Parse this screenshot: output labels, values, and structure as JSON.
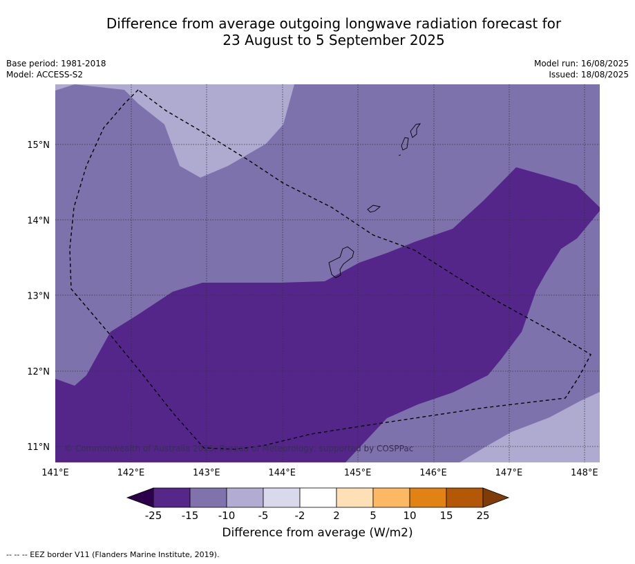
{
  "title": {
    "line1": "Difference from average outgoing longwave radiation forecast for",
    "line2": "23 August to 5 September 2025"
  },
  "meta_left": {
    "base_period": "Base period: 1981-2018",
    "model": "Model: ACCESS-S2"
  },
  "meta_right": {
    "model_run": "Model run: 16/08/2025",
    "issued": "Issued: 18/08/2025"
  },
  "map": {
    "lon_labels": [
      "141°E",
      "142°E",
      "143°E",
      "144°E",
      "145°E",
      "146°E",
      "147°E",
      "148°E"
    ],
    "lat_labels": [
      "15°N",
      "14°N",
      "13°N",
      "12°N",
      "11°N"
    ],
    "copyright": "© Commonwealth of Australia 2025, Bureau of Meteorology, supported by COSPPac",
    "colors": {
      "anomaly_le_-15": "#54268a",
      "anomaly_-15_to_-10": "#7e72ac",
      "anomaly_-10_to_-5": "#aeaad0"
    }
  },
  "colorbar": {
    "ticks": [
      "-25",
      "-15",
      "-10",
      "-5",
      "-2",
      "2",
      "5",
      "10",
      "15",
      "25"
    ],
    "colors": [
      "#542788",
      "#8073ac",
      "#b2abd2",
      "#d8daeb",
      "#ffffff",
      "#fee0b6",
      "#fdb863",
      "#e08214",
      "#b35806"
    ],
    "under_color": "#2d004b",
    "over_color": "#7f3b08",
    "label": "Difference from average (W/m2)"
  },
  "footnote": "--  --  -- EEZ border V11 (Flanders Marine Institute, 2019)."
}
